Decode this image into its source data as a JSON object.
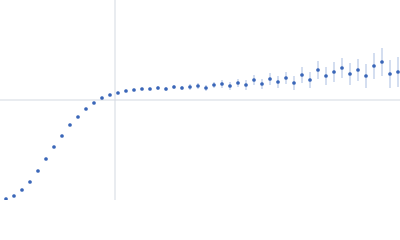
{
  "chart_data": {
    "type": "scatter",
    "xlim": [
      0,
      0.4
    ],
    "ylim": [
      0,
      2
    ],
    "xticks": [
      0.115
    ],
    "yticks": [
      1
    ],
    "grid": true,
    "show_tick_labels": false,
    "series": [
      {
        "color": "#3a66b8",
        "error_color": "#a9bde0",
        "x": [
          0.006,
          0.014,
          0.022,
          0.03,
          0.038,
          0.046,
          0.054,
          0.062,
          0.07,
          0.078,
          0.086,
          0.094,
          0.102,
          0.11,
          0.118,
          0.126,
          0.134,
          0.142,
          0.15,
          0.158,
          0.166,
          0.174,
          0.182,
          0.19,
          0.198,
          0.206,
          0.214,
          0.222,
          0.23,
          0.238,
          0.246,
          0.254,
          0.262,
          0.27,
          0.278,
          0.286,
          0.294,
          0.302,
          0.31,
          0.318,
          0.326,
          0.334,
          0.342,
          0.35,
          0.358,
          0.366,
          0.374,
          0.382,
          0.39,
          0.398
        ],
        "values": [
          0.01,
          0.04,
          0.1,
          0.18,
          0.29,
          0.41,
          0.53,
          0.64,
          0.75,
          0.83,
          0.91,
          0.97,
          1.02,
          1.05,
          1.07,
          1.09,
          1.1,
          1.11,
          1.11,
          1.12,
          1.11,
          1.13,
          1.12,
          1.13,
          1.14,
          1.12,
          1.15,
          1.16,
          1.14,
          1.17,
          1.15,
          1.2,
          1.16,
          1.21,
          1.18,
          1.22,
          1.17,
          1.25,
          1.2,
          1.3,
          1.24,
          1.28,
          1.32,
          1.26,
          1.3,
          1.24,
          1.34,
          1.38,
          1.26,
          1.28
        ],
        "errors": [
          0.01,
          0.01,
          0.01,
          0.01,
          0.01,
          0.01,
          0.01,
          0.01,
          0.01,
          0.01,
          0.01,
          0.01,
          0.01,
          0.01,
          0.01,
          0.01,
          0.01,
          0.01,
          0.01,
          0.02,
          0.02,
          0.02,
          0.02,
          0.03,
          0.03,
          0.03,
          0.03,
          0.04,
          0.04,
          0.04,
          0.05,
          0.05,
          0.05,
          0.06,
          0.06,
          0.06,
          0.07,
          0.08,
          0.08,
          0.09,
          0.09,
          0.1,
          0.1,
          0.11,
          0.11,
          0.12,
          0.13,
          0.14,
          0.14,
          0.15
        ]
      }
    ]
  }
}
